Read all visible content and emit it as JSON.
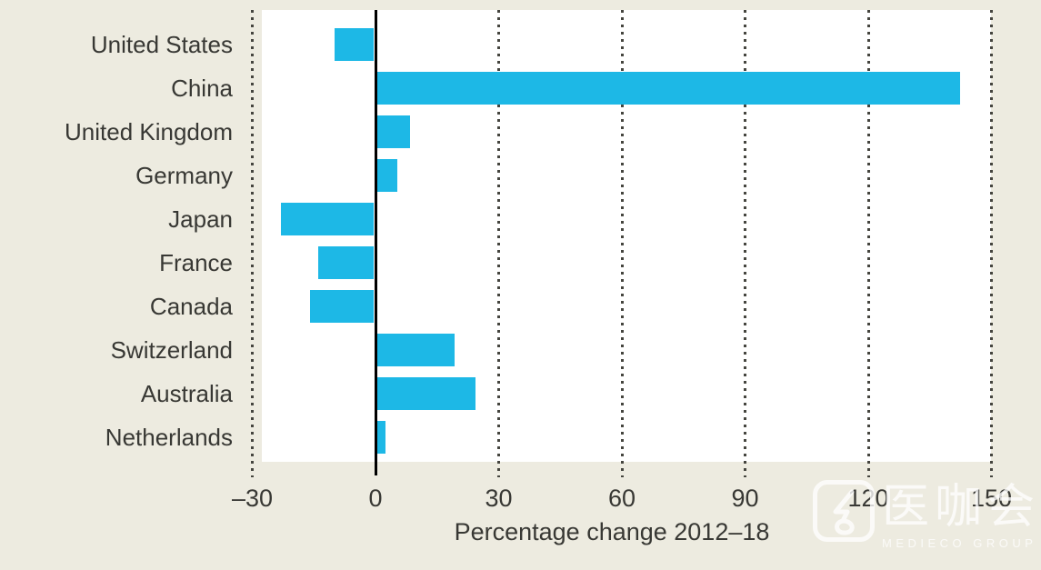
{
  "background_color": "#EDEBE0",
  "text_color": "#383834",
  "chart_data": {
    "type": "bar",
    "orientation": "horizontal",
    "categories": [
      "United States",
      "China",
      "United Kingdom",
      "Germany",
      "Japan",
      "France",
      "Canada",
      "Switzerland",
      "Australia",
      "Netherlands"
    ],
    "values": [
      -10,
      142,
      8,
      5,
      -23,
      -14,
      -16,
      19,
      24,
      2
    ],
    "xlabel": "Percentage change 2012–18",
    "xlim": [
      -30,
      150
    ],
    "xticks": [
      -30,
      0,
      30,
      60,
      90,
      120,
      150
    ],
    "xtick_labels": [
      "–30",
      "0",
      "30",
      "60",
      "90",
      "120",
      "150"
    ],
    "bar_color": "#1DB8E6",
    "plot_background": "#FFFFFF",
    "gridlines": "dotted-vertical",
    "gridline_color": "#45453F",
    "zero_line_color": "#000000",
    "legend": "none"
  },
  "watermark": {
    "brand": "医咖会",
    "subtext": "MEDIECO GROUP",
    "icon": "medieco-logo-icon",
    "color": "#FFFFFF"
  }
}
